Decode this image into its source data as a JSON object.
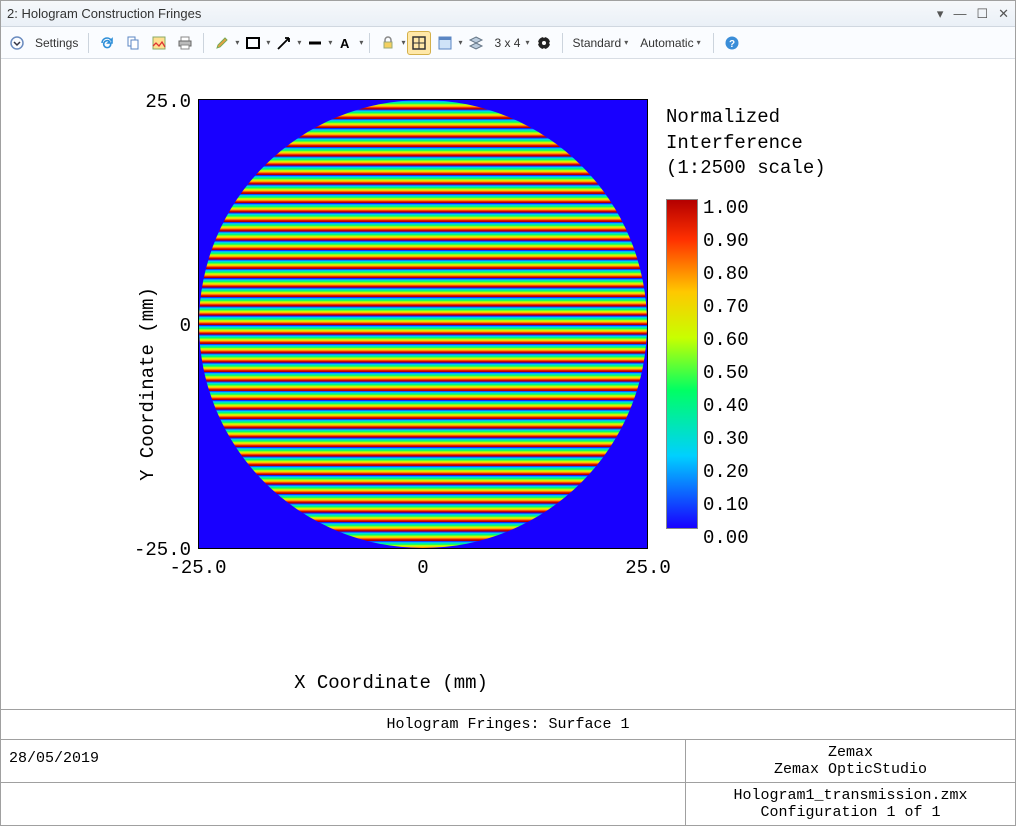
{
  "window": {
    "title": "2: Hologram Construction Fringes"
  },
  "toolbar": {
    "settings_label": "Settings",
    "grid_label": "3 x 4",
    "standard_label": "Standard",
    "automatic_label": "Automatic"
  },
  "plot": {
    "type": "heatmap",
    "title": "Hologram Fringes: Surface 1",
    "xlabel": "X Coordinate (mm)",
    "ylabel": "Y Coordinate (mm)",
    "xlim": [
      -25.0,
      25.0
    ],
    "ylim": [
      -25.0,
      25.0
    ],
    "xticks": [
      "-25.0",
      "0",
      "25.0"
    ],
    "yticks": [
      "25.0",
      "0",
      "-25.0"
    ],
    "background_color": "#1800ff",
    "fringe_count": 48,
    "fringe_gradient": "linear-gradient(to bottom, #1800ff 0%, #00d0ff 15%, #00ff64 35%, #c8ff00 55%, #ffc800 70%, #ff3000 85%, #b40000 100%)",
    "legend_title": "Normalized\nInterference\n(1:2500 scale)",
    "colorbar": {
      "gradient": "linear-gradient(to bottom, #b40000 0%, #ff3000 12%, #ffc800 28%, #c8ff00 42%, #00ff64 58%, #00d0ff 78%, #1800ff 100%)",
      "ticks": [
        "1.00",
        "0.90",
        "0.80",
        "0.70",
        "0.60",
        "0.50",
        "0.40",
        "0.30",
        "0.20",
        "0.10",
        "0.00"
      ]
    }
  },
  "footer": {
    "date": "28/05/2019",
    "vendor_line1": "Zemax",
    "vendor_line2": "Zemax OpticStudio",
    "file_name": "Hologram1_transmission.zmx",
    "config": "Configuration 1 of 1"
  },
  "colors": {
    "accent": "#2f6fbf",
    "chrome_border": "#d0d7e0"
  }
}
